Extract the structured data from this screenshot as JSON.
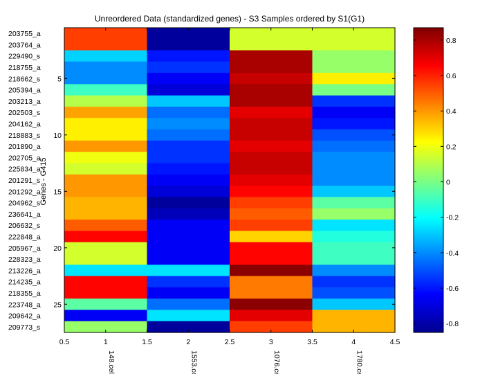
{
  "chart_data": {
    "type": "heatmap",
    "title": "Unreordered Data (standardized genes) - S3 Samples ordered by S1(G1)",
    "ylabel": "Genes - G415",
    "xlim": [
      0.5,
      4.5
    ],
    "ylim": [
      0.5,
      27.5
    ],
    "x_ticks": [
      "0.5",
      "1",
      "1.5",
      "2",
      "2.5",
      "3",
      "3.5",
      "4",
      "4.5"
    ],
    "y_ticks": [
      "5",
      "10",
      "15",
      "20",
      "25"
    ],
    "columns": [
      "148.cel",
      "1553.cel",
      "1076.cel",
      "1780.cel"
    ],
    "rows": [
      "203755_a",
      "203764_a",
      "229490_s",
      "218755_a",
      "218662_s",
      "205394_a",
      "203213_a",
      "202503_s",
      "204162_a",
      "218883_s",
      "201890_a",
      "202705_a",
      "225834_a",
      "201291_s",
      "201292_a",
      "204962_s",
      "236641_a",
      "206632_s",
      "222848_a",
      "205967_a",
      "228323_a",
      "213226_a",
      "214235_a",
      "218355_a",
      "223748_a",
      "209642_a",
      "209773_s"
    ],
    "values": [
      [
        0.55,
        -0.8,
        0.15,
        0.15
      ],
      [
        0.55,
        -0.8,
        0.15,
        0.15
      ],
      [
        -0.28,
        -0.6,
        0.8,
        0.05
      ],
      [
        -0.4,
        -0.55,
        0.8,
        0.05
      ],
      [
        -0.4,
        -0.65,
        0.75,
        0.25
      ],
      [
        -0.1,
        -0.7,
        0.8,
        0.0
      ],
      [
        0.1,
        -0.3,
        0.8,
        -0.55
      ],
      [
        0.38,
        -0.45,
        0.7,
        -0.65
      ],
      [
        0.25,
        -0.4,
        0.75,
        -0.6
      ],
      [
        0.25,
        -0.45,
        0.75,
        -0.5
      ],
      [
        0.4,
        -0.55,
        0.7,
        -0.45
      ],
      [
        0.2,
        -0.55,
        0.75,
        -0.4
      ],
      [
        0.15,
        -0.6,
        0.75,
        -0.4
      ],
      [
        0.4,
        -0.65,
        0.7,
        -0.4
      ],
      [
        0.4,
        -0.7,
        0.65,
        -0.3
      ],
      [
        0.35,
        -0.8,
        0.55,
        -0.05
      ],
      [
        0.35,
        -0.75,
        0.5,
        0.05
      ],
      [
        0.5,
        -0.65,
        0.55,
        -0.25
      ],
      [
        0.65,
        -0.65,
        0.3,
        -0.15
      ],
      [
        0.15,
        -0.65,
        0.65,
        -0.1
      ],
      [
        0.15,
        -0.65,
        0.65,
        -0.1
      ],
      [
        -0.25,
        -0.25,
        0.85,
        -0.4
      ],
      [
        0.65,
        -0.55,
        0.45,
        -0.55
      ],
      [
        0.65,
        -0.65,
        0.45,
        -0.5
      ],
      [
        -0.05,
        -0.45,
        0.85,
        -0.3
      ],
      [
        -0.65,
        -0.25,
        0.7,
        0.35
      ],
      [
        0.05,
        -0.8,
        0.55,
        0.35
      ]
    ],
    "colorbar": {
      "min": -0.85,
      "max": 0.87,
      "ticks": [
        0.8,
        0.6,
        0.4,
        0.2,
        0,
        -0.2,
        -0.4,
        -0.6,
        -0.8
      ],
      "tick_labels": [
        "0.8",
        "0.6",
        "0.4",
        "0.2",
        "0",
        "-0.2",
        "-0.4",
        "-0.6",
        "-0.8"
      ]
    },
    "colormap": "jet",
    "grid": false,
    "legend": "colorbar-right"
  }
}
